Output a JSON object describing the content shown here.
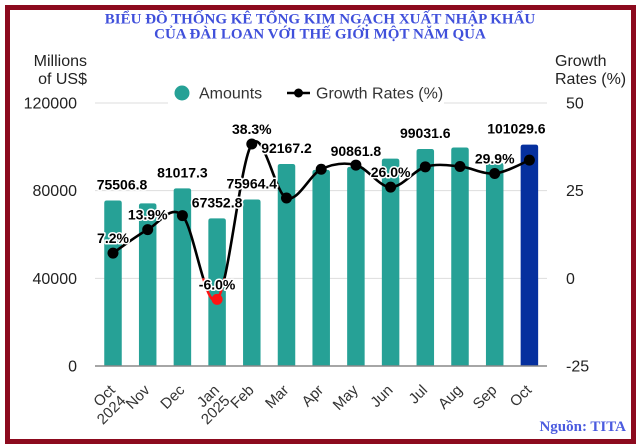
{
  "header": {
    "title_line1": "BIỂU ĐỒ THỐNG KÊ TỔNG KIM NGẠCH XUẤT NHẬP KHẨU",
    "title_line2": "CỦA ĐÀI LOAN VỚI THẾ GIỚI MỘT NĂM QUA"
  },
  "footer": {
    "source": "Nguồn: TITA"
  },
  "style": {
    "frame_color": "#8C0A1E"
  },
  "chart_data": {
    "type": "bar",
    "title": "BIỂU ĐỒ THỐNG KÊ TỔNG KIM NGẠCH XUẤT NHẬP KHẨU CỦA ĐÀI LOAN VỚI THẾ GIỚI MỘT NĂM QUA",
    "categories": [
      "Oct 2024",
      "Nov",
      "Dec",
      "Jan 2025",
      "Feb",
      "Mar",
      "Apr",
      "May",
      "Jun",
      "Jul",
      "Aug",
      "Sep",
      "Oct"
    ],
    "category_lines": [
      [
        "Oct",
        "2024"
      ],
      [
        "Nov"
      ],
      [
        "Dec"
      ],
      [
        "Jan",
        "2025"
      ],
      [
        "Feb"
      ],
      [
        "Mar"
      ],
      [
        "Apr"
      ],
      [
        "May"
      ],
      [
        "Jun"
      ],
      [
        "Jul"
      ],
      [
        "Aug"
      ],
      [
        "Sep"
      ],
      [
        "Oct"
      ]
    ],
    "series": [
      {
        "name": "Amounts",
        "type": "bar",
        "axis": "left",
        "values": [
          75506.8,
          74200,
          81017.3,
          67352.8,
          75964.4,
          92167.2,
          89500,
          90861.8,
          94600,
          99031.6,
          99700,
          92700,
          101029.6
        ],
        "data_labels": [
          "75506.8",
          null,
          "81017.3",
          "67352.8",
          "75964.4",
          "92167.2",
          null,
          "90861.8",
          null,
          "99031.6",
          null,
          null,
          "101029.6"
        ]
      },
      {
        "name": "Growth Rates (%)",
        "type": "line",
        "axis": "right",
        "smooth": true,
        "values": [
          7.2,
          13.9,
          17.9,
          -6.0,
          38.3,
          22.9,
          31.1,
          32.3,
          26.0,
          31.8,
          31.9,
          29.9,
          33.7
        ],
        "data_labels": [
          "7.2%",
          "13.9%",
          null,
          "-6.0%",
          "38.3%",
          null,
          null,
          null,
          "26.0%",
          null,
          null,
          "29.9%",
          null
        ]
      }
    ],
    "xlabel": "",
    "ylabel": "Millions of US$",
    "ylabel_lines": [
      "Millions",
      "of US$"
    ],
    "y2label": "Growth Rates (%)",
    "y2label_lines": [
      "Growth",
      "Rates (%)"
    ],
    "ylim": [
      0,
      120000
    ],
    "yticks": [
      0,
      40000,
      80000,
      120000
    ],
    "y2lim": [
      -25,
      50
    ],
    "y2ticks": [
      -25,
      0,
      25,
      50
    ],
    "grid": true,
    "legend": "top-center",
    "highlight_index": 12,
    "colors": {
      "bar": "#26A196",
      "highlight_bar": "#06309E",
      "line": "#000000",
      "negative": "#FF1414",
      "grid": "#DDDDDD",
      "axis": "#888888"
    }
  }
}
